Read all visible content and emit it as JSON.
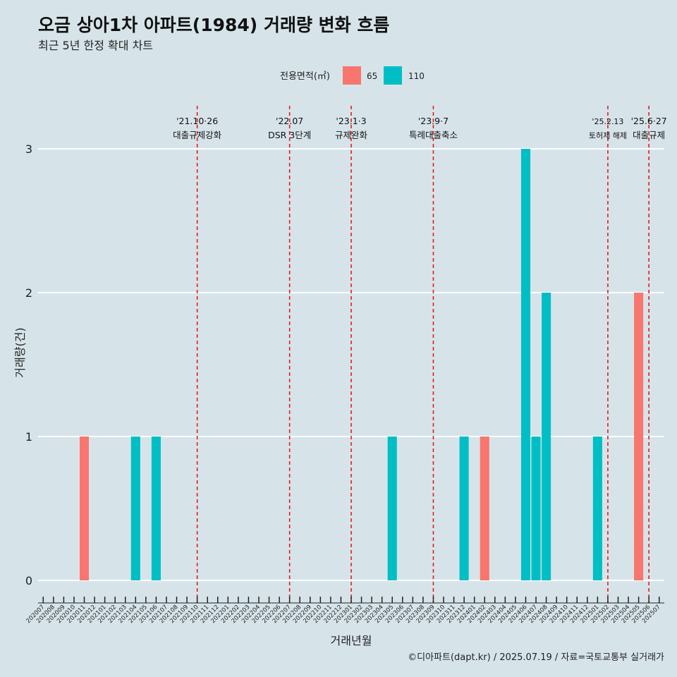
{
  "chart_data": {
    "type": "bar",
    "title": "오금 상아1차 아파트(1984) 거래량 변화 흐름",
    "subtitle": "최근 5년 한정 확대 차트",
    "xlabel": "거래년월",
    "ylabel": "거래량(건)",
    "ylim": [
      0,
      3
    ],
    "yticks": [
      "0",
      "1",
      "2",
      "3"
    ],
    "legend": {
      "title": "전용면적(㎡)",
      "position": "top"
    },
    "categories": [
      "202007",
      "202008",
      "202009",
      "202010",
      "202011",
      "202012",
      "202101",
      "202102",
      "202103",
      "202104",
      "202105",
      "202106",
      "202107",
      "202108",
      "202109",
      "202110",
      "202111",
      "202112",
      "202201",
      "202202",
      "202203",
      "202204",
      "202205",
      "202206",
      "202207",
      "202208",
      "202209",
      "202210",
      "202211",
      "202212",
      "202301",
      "202302",
      "202303",
      "202304",
      "202305",
      "202306",
      "202307",
      "202308",
      "202309",
      "202310",
      "202311",
      "202312",
      "202401",
      "202402",
      "202403",
      "202404",
      "202405",
      "202406",
      "202407",
      "202408",
      "202409",
      "202410",
      "202411",
      "202412",
      "202501",
      "202502",
      "202503",
      "202504",
      "202505",
      "202506",
      "202507"
    ],
    "series": [
      {
        "name": "65",
        "color": "#f8766d",
        "values": [
          0,
          0,
          0,
          0,
          1,
          0,
          0,
          0,
          0,
          0,
          0,
          0,
          0,
          0,
          0,
          0,
          0,
          0,
          0,
          0,
          0,
          0,
          0,
          0,
          0,
          0,
          0,
          0,
          0,
          0,
          0,
          0,
          0,
          0,
          0,
          0,
          0,
          0,
          0,
          0,
          0,
          0,
          0,
          1,
          0,
          0,
          0,
          0,
          0,
          0,
          0,
          0,
          0,
          0,
          0,
          0,
          0,
          0,
          2,
          0,
          0
        ]
      },
      {
        "name": "110",
        "color": "#00bfc4",
        "values": [
          0,
          0,
          0,
          0,
          0,
          0,
          0,
          0,
          0,
          1,
          0,
          1,
          0,
          0,
          0,
          0,
          0,
          0,
          0,
          0,
          0,
          0,
          0,
          0,
          0,
          0,
          0,
          0,
          0,
          0,
          0,
          0,
          0,
          0,
          1,
          0,
          0,
          0,
          0,
          0,
          0,
          1,
          0,
          0,
          0,
          0,
          0,
          3,
          1,
          2,
          0,
          0,
          0,
          0,
          1,
          0,
          0,
          0,
          0,
          0,
          0
        ]
      }
    ],
    "events": [
      {
        "category": "202110",
        "date": "'21.10·26",
        "label": "대출규제강화"
      },
      {
        "category": "202207",
        "date": "'22.07",
        "label": "DSR 3단계"
      },
      {
        "category": "202301",
        "date": "'23.1·3",
        "label": "규제완화"
      },
      {
        "category": "202309",
        "date": "'23.9·7",
        "label": "특례대출축소"
      },
      {
        "category": "202502",
        "date": "'25.2.13",
        "label": "토허제 해제"
      },
      {
        "category": "202506",
        "date": "'25.6·27",
        "label": "대출규제"
      }
    ],
    "grid": true
  },
  "caption": "©디아파트(dapt.kr) / 2025.07.19 / 자료=국토교통부 실거래가"
}
